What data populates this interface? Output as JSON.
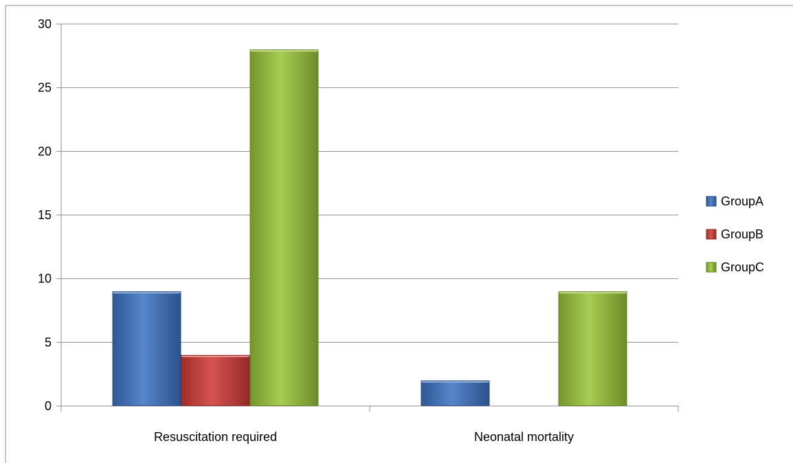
{
  "chart_data": {
    "type": "bar",
    "categories": [
      "Resuscitation required",
      "Neonatal mortality"
    ],
    "series": [
      {
        "name": "GroupA",
        "values": [
          9,
          2
        ],
        "color": "#3f74c4"
      },
      {
        "name": "GroupB",
        "values": [
          4,
          0
        ],
        "color": "#d23b38"
      },
      {
        "name": "GroupC",
        "values": [
          28,
          9
        ],
        "color": "#9bc63a"
      }
    ],
    "title": "",
    "xlabel": "",
    "ylabel": "",
    "ylim": [
      0,
      30
    ],
    "yticks": [
      0,
      5,
      10,
      15,
      20,
      25,
      30
    ],
    "grid": true,
    "legend_position": "right"
  }
}
